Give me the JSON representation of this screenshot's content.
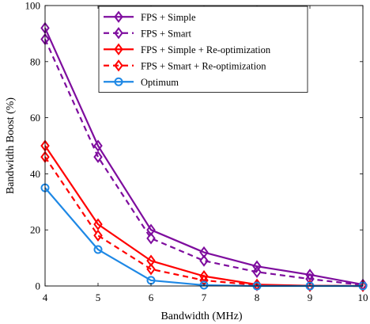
{
  "chart_data": {
    "type": "line",
    "xlabel": "Bandwidth (MHz)",
    "ylabel": "Bandwidth Boost (%)",
    "xlim": [
      4,
      10
    ],
    "ylim": [
      0,
      100
    ],
    "xticks": [
      4,
      5,
      6,
      7,
      8,
      9,
      10
    ],
    "yticks": [
      0,
      20,
      40,
      60,
      80,
      100
    ],
    "grid": false,
    "legend_position": "top-right",
    "x": [
      4,
      5,
      6,
      7,
      8,
      9,
      10
    ],
    "series": [
      {
        "name": "FPS + Simple",
        "values": [
          92,
          50,
          20,
          12,
          7,
          4,
          0.5
        ],
        "color": "#7E0D9E",
        "dashed": false,
        "marker": "diamond"
      },
      {
        "name": "FPS + Smart",
        "values": [
          88,
          46,
          17,
          9,
          5,
          2.5,
          0.3
        ],
        "color": "#7E0D9E",
        "dashed": true,
        "marker": "diamond"
      },
      {
        "name": "FPS + Simple + Re-optimization",
        "values": [
          50,
          22,
          9,
          3.5,
          0.5,
          0.1,
          0
        ],
        "color": "#FF0000",
        "dashed": false,
        "marker": "diamond"
      },
      {
        "name": "FPS + Smart + Re-optimization",
        "values": [
          46,
          18,
          6,
          2,
          0.3,
          0.05,
          0
        ],
        "color": "#FF0000",
        "dashed": true,
        "marker": "diamond"
      },
      {
        "name": "Optimum",
        "values": [
          35,
          13,
          2,
          0.3,
          0,
          0,
          0
        ],
        "color": "#1E88E5",
        "dashed": false,
        "marker": "circle"
      }
    ]
  }
}
